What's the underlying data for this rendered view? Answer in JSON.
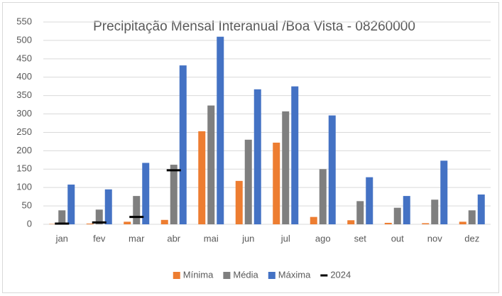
{
  "chart_data": {
    "type": "bar",
    "title": "Precipitação Mensal Interanual /Boa Vista - 08260000",
    "categories": [
      "jan",
      "fev",
      "mar",
      "abr",
      "mai",
      "jun",
      "jul",
      "ago",
      "set",
      "out",
      "nov",
      "dez"
    ],
    "series": [
      {
        "name": "Mínima",
        "color": "#ed7d31",
        "values": [
          1,
          2,
          7,
          12,
          253,
          118,
          222,
          20,
          11,
          4,
          3,
          7
        ]
      },
      {
        "name": "Média",
        "color": "#7f7f7f",
        "values": [
          38,
          40,
          77,
          162,
          323,
          230,
          307,
          150,
          63,
          45,
          67,
          38
        ]
      },
      {
        "name": "Máxima",
        "color": "#4472c4",
        "values": [
          108,
          95,
          167,
          432,
          510,
          367,
          375,
          296,
          128,
          77,
          173,
          81
        ]
      },
      {
        "name": "2024",
        "color": "#000000",
        "marker": "dash",
        "values": [
          2,
          5,
          20,
          147,
          null,
          null,
          null,
          null,
          null,
          null,
          null,
          null
        ]
      }
    ],
    "ylim": [
      0,
      550
    ],
    "yticks": [
      0,
      50,
      100,
      150,
      200,
      250,
      300,
      350,
      400,
      450,
      500,
      550
    ],
    "grid": true,
    "legend": "bottom"
  }
}
